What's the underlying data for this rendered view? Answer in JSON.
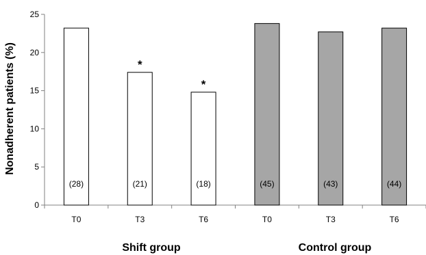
{
  "chart_data": {
    "type": "bar",
    "ylabel": "Nonadherent patients (%)",
    "ylim": [
      0,
      25
    ],
    "yticks": [
      0,
      5,
      10,
      15,
      20,
      25
    ],
    "grid": false,
    "bars": [
      {
        "group": "Shift group",
        "category": "T0",
        "value": 23.2,
        "n_label": "(28)",
        "significant": false,
        "color": "#ffffff"
      },
      {
        "group": "Shift group",
        "category": "T3",
        "value": 17.4,
        "n_label": "(21)",
        "significant": true,
        "color": "#ffffff"
      },
      {
        "group": "Shift group",
        "category": "T6",
        "value": 14.8,
        "n_label": "(18)",
        "significant": true,
        "color": "#ffffff"
      },
      {
        "group": "Control group",
        "category": "T0",
        "value": 23.8,
        "n_label": "(45)",
        "significant": false,
        "color": "#a6a6a6"
      },
      {
        "group": "Control group",
        "category": "T3",
        "value": 22.7,
        "n_label": "(43)",
        "significant": false,
        "color": "#a6a6a6"
      },
      {
        "group": "Control group",
        "category": "T6",
        "value": 23.2,
        "n_label": "(44)",
        "significant": false,
        "color": "#a6a6a6"
      }
    ],
    "groups": [
      "Shift group",
      "Control group"
    ],
    "significance_marker": "*"
  }
}
